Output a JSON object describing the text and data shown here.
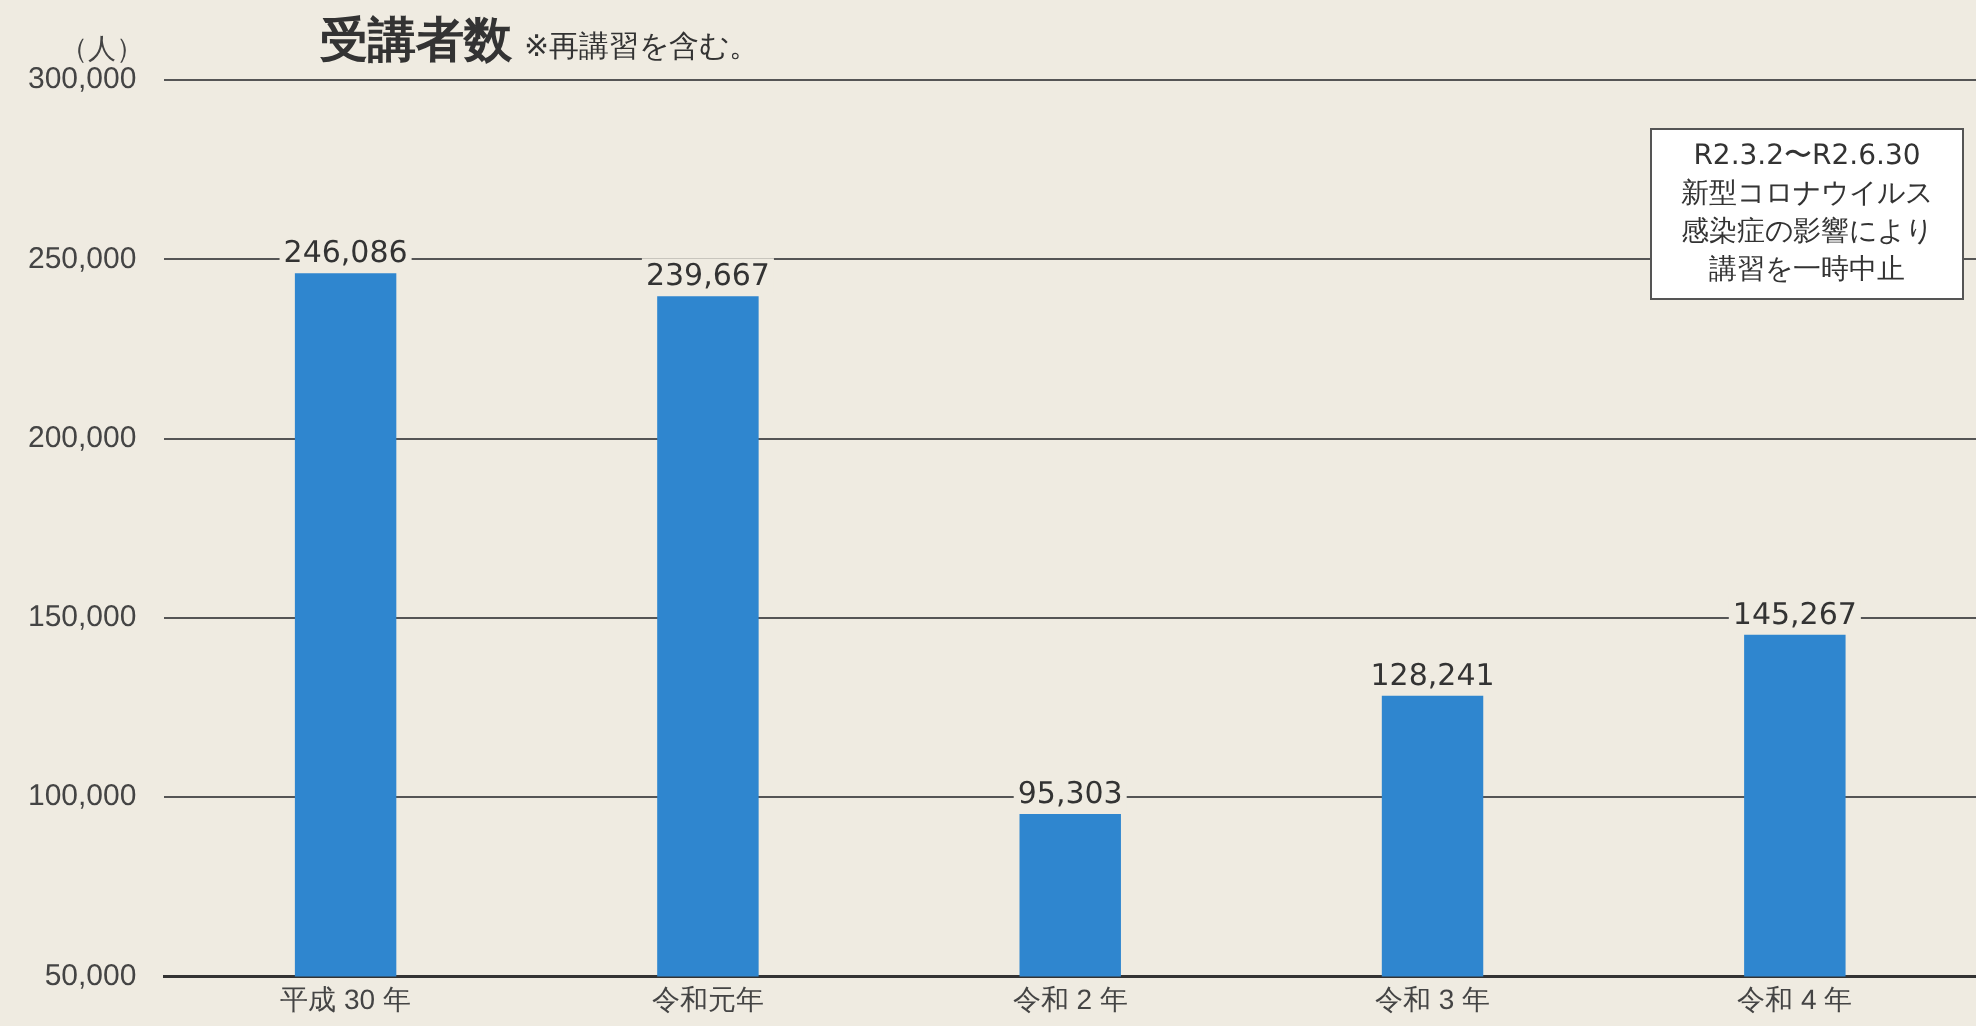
{
  "chart_data": {
    "type": "bar",
    "title": "受講者数",
    "subtitle": "※再講習を含む。",
    "ylabel": "（人）",
    "categories": [
      "平成 30 年",
      "令和元年",
      "令和 2 年",
      "令和 3 年",
      "令和 4 年"
    ],
    "values": [
      246086,
      239667,
      95303,
      128241,
      145267
    ],
    "color": "#2f86cf",
    "value_labels": [
      "246,086",
      "239,667",
      "95,303",
      "128,241",
      "145,267"
    ],
    "ylim": [
      50000,
      300000
    ],
    "yticks": [
      {
        "value": 50000,
        "label": "50,000"
      },
      {
        "value": 100000,
        "label": "100,000"
      },
      {
        "value": 150000,
        "label": "150,000"
      },
      {
        "value": 200000,
        "label": "200,000"
      },
      {
        "value": 250000,
        "label": "250,000"
      },
      {
        "value": 300000,
        "label": "300,000"
      }
    ],
    "grid": "y",
    "annotations": [
      "R2.3.2〜R2.6.30",
      "新型コロナウイルス感染症の影響により講習を一時中止"
    ]
  }
}
